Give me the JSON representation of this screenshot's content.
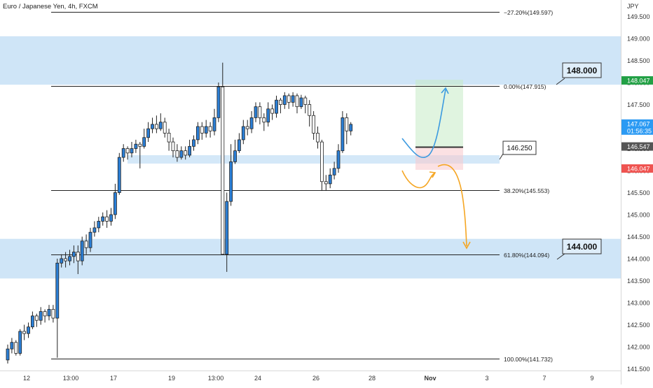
{
  "chart_data": {
    "type": "candlestick",
    "title": "Euro / Japanese Yen, 4h, FXCM",
    "currency": "JPY",
    "ylim": [
      141.45,
      149.7
    ],
    "y_ticks": [
      "149.500",
      "149.000",
      "148.500",
      "148.000",
      "147.500",
      "147.000",
      "146.500",
      "146.000",
      "145.500",
      "145.000",
      "144.500",
      "144.000",
      "143.500",
      "143.000",
      "142.500",
      "142.000",
      "141.500"
    ],
    "x_labels": [
      "12",
      "13:00",
      "17",
      "19",
      "13:00",
      "24",
      "26",
      "28",
      "Nov",
      "3",
      "7",
      "9"
    ],
    "x_label_bold": "Nov",
    "colors": {
      "up": "#2b7fd6",
      "down": "#ffffff",
      "wick": "#222222",
      "zone": "#cfe5f7"
    },
    "candles": [
      [
        141.7,
        141.95,
        141.62,
        142.05
      ],
      [
        141.95,
        142.1,
        141.85,
        142.2
      ],
      [
        142.1,
        141.85,
        141.8,
        142.15
      ],
      [
        141.85,
        142.35,
        141.8,
        142.4
      ],
      [
        142.35,
        142.3,
        142.15,
        142.5
      ],
      [
        142.3,
        142.45,
        142.2,
        142.55
      ],
      [
        142.45,
        142.7,
        142.4,
        142.8
      ],
      [
        142.7,
        142.6,
        142.45,
        142.75
      ],
      [
        142.6,
        142.8,
        142.5,
        142.9
      ],
      [
        142.8,
        142.7,
        142.55,
        142.85
      ],
      [
        142.7,
        142.85,
        142.6,
        142.95
      ],
      [
        142.85,
        142.65,
        142.55,
        142.95
      ],
      [
        142.65,
        143.9,
        141.75,
        144.0
      ],
      [
        143.9,
        144.0,
        143.8,
        144.1
      ],
      [
        144.0,
        143.95,
        143.8,
        144.15
      ],
      [
        143.95,
        144.05,
        143.85,
        144.2
      ],
      [
        144.05,
        144.15,
        143.9,
        144.3
      ],
      [
        144.15,
        143.95,
        143.65,
        144.3
      ],
      [
        143.95,
        144.4,
        143.85,
        144.5
      ],
      [
        144.4,
        144.25,
        144.1,
        144.55
      ],
      [
        144.25,
        144.6,
        144.15,
        144.7
      ],
      [
        144.6,
        144.7,
        144.5,
        144.85
      ],
      [
        144.7,
        144.85,
        144.6,
        144.95
      ],
      [
        144.85,
        144.95,
        144.75,
        145.05
      ],
      [
        144.95,
        144.85,
        144.7,
        145.1
      ],
      [
        144.85,
        145.0,
        144.75,
        145.15
      ],
      [
        145.0,
        145.5,
        144.9,
        145.7
      ],
      [
        145.5,
        146.3,
        145.45,
        146.4
      ],
      [
        146.3,
        146.5,
        146.2,
        146.6
      ],
      [
        146.5,
        146.4,
        146.25,
        146.55
      ],
      [
        146.4,
        146.5,
        146.3,
        146.65
      ],
      [
        146.5,
        146.6,
        146.4,
        146.7
      ],
      [
        146.6,
        146.55,
        146.05,
        146.65
      ],
      [
        146.55,
        146.75,
        146.5,
        146.95
      ],
      [
        146.75,
        146.95,
        146.65,
        147.1
      ],
      [
        146.95,
        147.05,
        146.85,
        147.2
      ],
      [
        147.05,
        146.95,
        146.85,
        147.25
      ],
      [
        146.95,
        147.1,
        146.9,
        147.3
      ],
      [
        147.1,
        146.85,
        146.75,
        147.2
      ],
      [
        146.85,
        146.65,
        146.45,
        146.95
      ],
      [
        146.65,
        146.45,
        146.3,
        146.75
      ],
      [
        146.45,
        146.3,
        146.2,
        146.6
      ],
      [
        146.3,
        146.45,
        146.25,
        146.55
      ],
      [
        146.45,
        146.35,
        146.25,
        146.55
      ],
      [
        146.35,
        146.55,
        146.3,
        146.7
      ],
      [
        146.55,
        146.7,
        146.45,
        146.8
      ],
      [
        146.7,
        147.0,
        146.6,
        147.1
      ],
      [
        147.0,
        146.85,
        146.7,
        147.1
      ],
      [
        146.85,
        147.0,
        146.75,
        147.15
      ],
      [
        147.0,
        146.9,
        146.75,
        147.1
      ],
      [
        146.9,
        147.2,
        146.8,
        147.4
      ],
      [
        147.2,
        147.9,
        147.1,
        148.0
      ],
      [
        147.9,
        144.1,
        144.1,
        148.45
      ],
      [
        144.1,
        145.3,
        143.7,
        145.5
      ],
      [
        145.3,
        146.2,
        145.2,
        146.6
      ],
      [
        146.2,
        146.45,
        146.15,
        146.7
      ],
      [
        146.45,
        146.7,
        146.4,
        146.85
      ],
      [
        146.7,
        147.0,
        146.6,
        147.15
      ],
      [
        147.0,
        146.95,
        146.8,
        147.15
      ],
      [
        146.95,
        147.2,
        146.85,
        147.35
      ],
      [
        147.2,
        147.45,
        147.1,
        147.55
      ],
      [
        147.45,
        147.2,
        147.05,
        147.55
      ],
      [
        147.2,
        147.1,
        146.9,
        147.3
      ],
      [
        147.1,
        147.4,
        147.0,
        147.55
      ],
      [
        147.4,
        147.3,
        147.15,
        147.5
      ],
      [
        147.3,
        147.6,
        147.2,
        147.7
      ],
      [
        147.6,
        147.5,
        147.3,
        147.65
      ],
      [
        147.5,
        147.7,
        147.4,
        147.78
      ],
      [
        147.7,
        147.55,
        147.4,
        147.75
      ],
      [
        147.55,
        147.7,
        147.45,
        147.78
      ],
      [
        147.7,
        147.45,
        147.3,
        147.75
      ],
      [
        147.45,
        147.65,
        147.4,
        147.72
      ],
      [
        147.65,
        147.5,
        147.3,
        147.7
      ],
      [
        147.5,
        147.25,
        147.0,
        147.6
      ],
      [
        147.25,
        146.85,
        146.7,
        147.35
      ],
      [
        146.85,
        146.65,
        146.5,
        147.0
      ],
      [
        146.65,
        145.75,
        145.55,
        146.7
      ],
      [
        145.75,
        145.7,
        145.55,
        145.9
      ],
      [
        145.7,
        145.9,
        145.6,
        146.05
      ],
      [
        145.9,
        146.05,
        145.8,
        146.2
      ],
      [
        146.05,
        146.45,
        145.95,
        146.6
      ],
      [
        146.45,
        147.2,
        146.4,
        147.35
      ],
      [
        147.2,
        146.9,
        146.6,
        147.3
      ],
      [
        146.9,
        147.05,
        146.8,
        147.1
      ]
    ],
    "levels": [
      {
        "label": "−27.20%(149.597)",
        "price": 149.597
      },
      {
        "label": "0.00%(147.915)",
        "price": 147.915
      },
      {
        "label": "38.20%(145.553)",
        "price": 145.553
      },
      {
        "label": "61.80%(144.094)",
        "price": 144.094
      },
      {
        "label": "100.00%(141.732)",
        "price": 141.732
      }
    ],
    "zones": [
      {
        "from": 147.95,
        "to": 149.05
      },
      {
        "from": 143.55,
        "to": 144.45
      }
    ],
    "callouts": [
      "148.000",
      "144.000",
      "146.250"
    ],
    "price_badges": [
      {
        "label": "148.047",
        "price": 148.047,
        "color": "#22a045"
      },
      {
        "label": "147.067",
        "sub": "01:56:35",
        "price": 147.067,
        "color": "#2b9af3"
      },
      {
        "label": "146.547",
        "price": 146.547,
        "color": "#555555"
      },
      {
        "label": "146.047",
        "price": 146.047,
        "color": "#ef5350"
      }
    ]
  }
}
